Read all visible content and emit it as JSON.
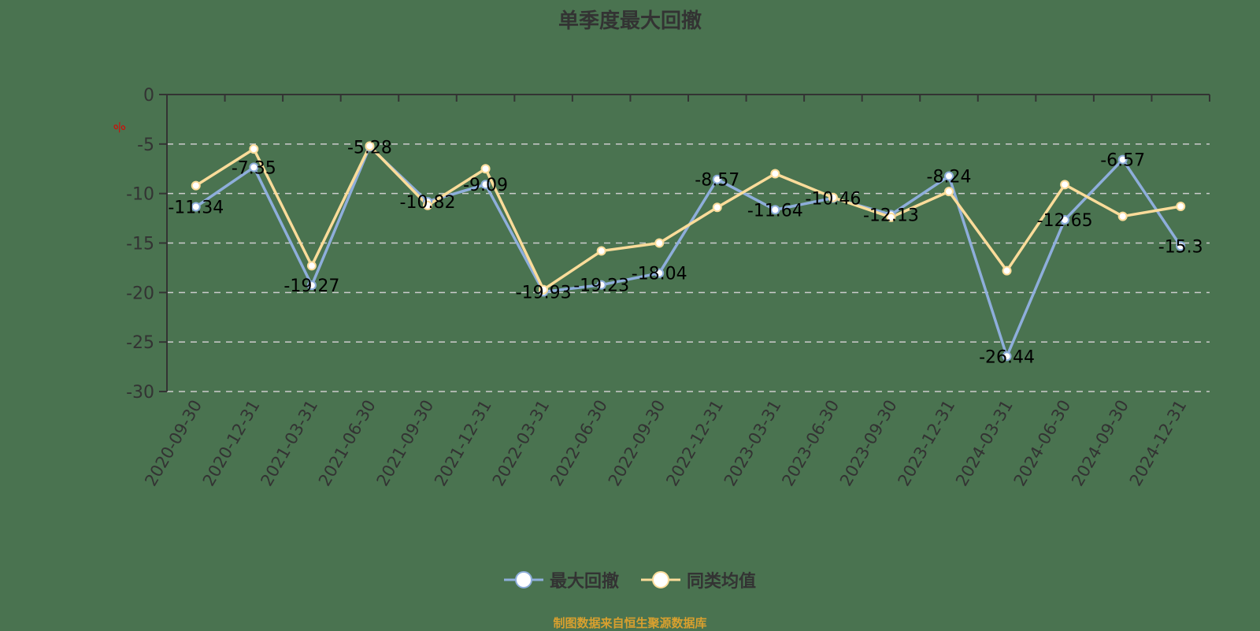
{
  "title": "单季度最大回撤",
  "footer": "制图数据来自恒生聚源数据库",
  "chart_data": {
    "type": "line",
    "title": "单季度最大回撤",
    "xlabel": "",
    "ylabel": "%",
    "ylim": [
      -30,
      0
    ],
    "yticks": [
      0,
      -5,
      -10,
      -15,
      -20,
      -25,
      -30
    ],
    "grid": "horizontal dashed",
    "legend_position": "bottom",
    "categories": [
      "2020-09-30",
      "2020-12-31",
      "2021-03-31",
      "2021-06-30",
      "2021-09-30",
      "2021-12-31",
      "2022-03-31",
      "2022-06-30",
      "2022-09-30",
      "2022-12-31",
      "2023-03-31",
      "2023-06-30",
      "2023-09-30",
      "2023-12-31",
      "2024-03-31",
      "2024-06-30",
      "2024-09-30",
      "2024-12-31"
    ],
    "series": [
      {
        "name": "最大回撤",
        "color": "#8eaedb",
        "labeled": true,
        "values": [
          -11.34,
          -7.35,
          -19.27,
          -5.28,
          -10.82,
          -9.09,
          -19.93,
          -19.23,
          -18.04,
          -8.57,
          -11.64,
          -10.46,
          -12.13,
          -8.24,
          -26.44,
          -12.65,
          -6.57,
          -15.3
        ]
      },
      {
        "name": "同类均值",
        "color": "#fbdc9a",
        "labeled": false,
        "values": [
          -9.2,
          -5.5,
          -17.3,
          -5.2,
          -11.2,
          -7.5,
          -19.7,
          -15.8,
          -15.0,
          -11.4,
          -8.0,
          -10.4,
          -12.4,
          -9.8,
          -17.8,
          -9.1,
          -12.3,
          -11.3
        ]
      }
    ]
  },
  "colors": {
    "background": "#4a7350",
    "axis": "#333333",
    "grid": "#cccccc",
    "unit_label": "#e00000",
    "footer": "#d9a02e"
  }
}
